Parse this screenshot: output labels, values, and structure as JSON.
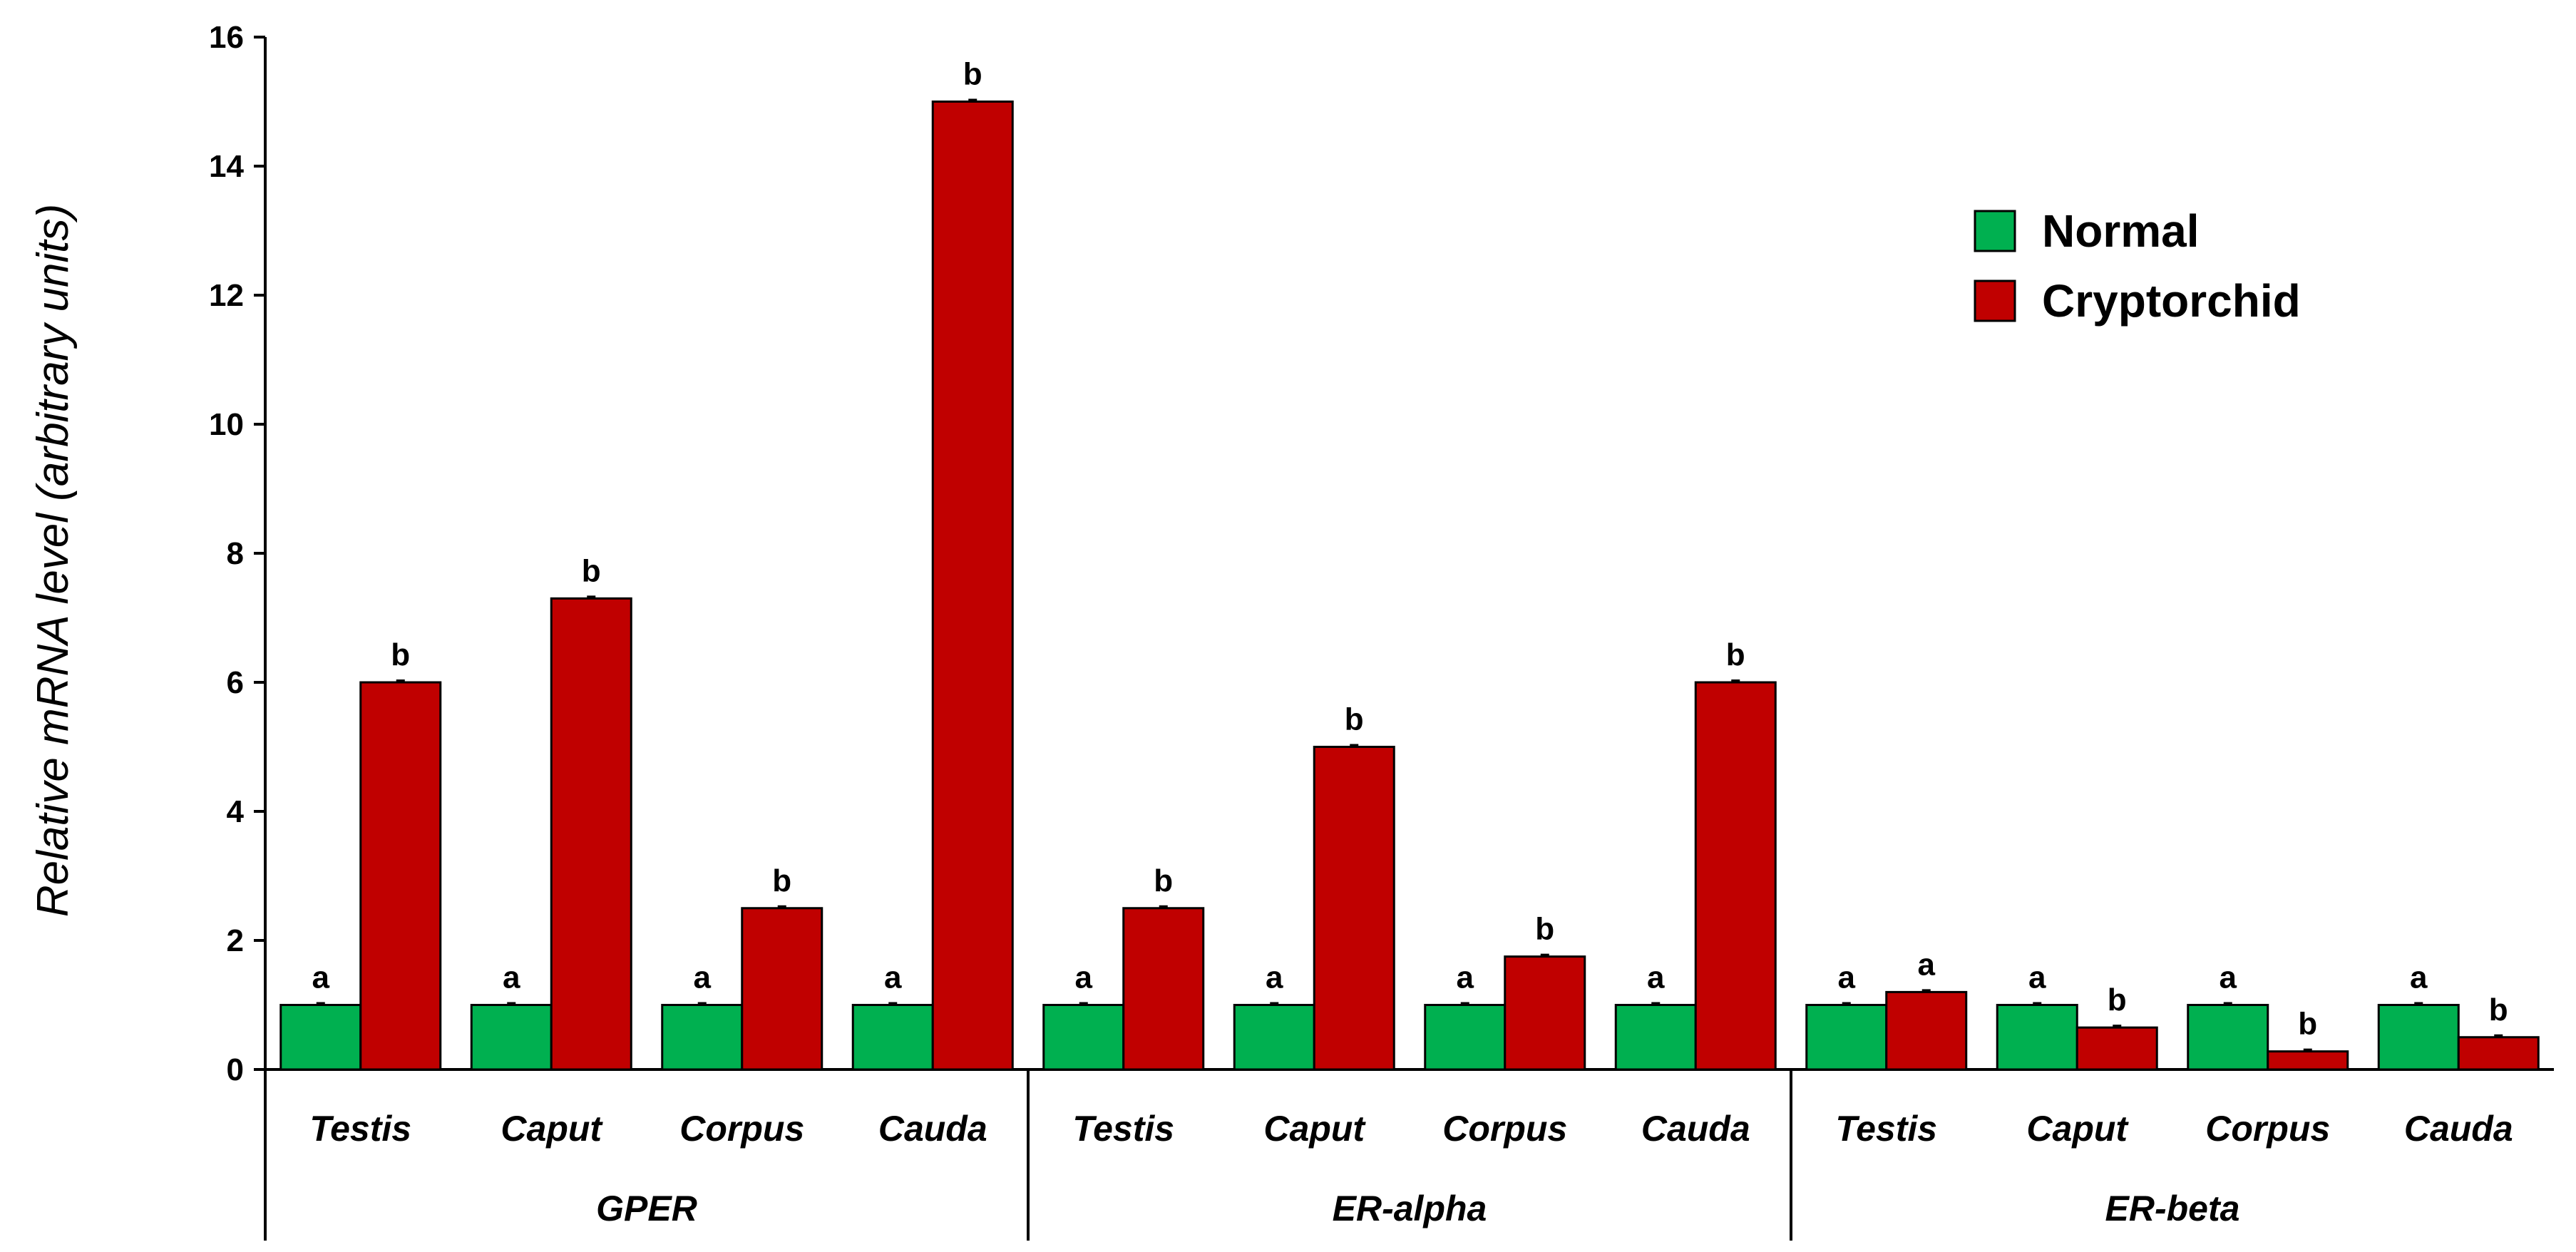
{
  "chart_data": {
    "type": "bar",
    "ylabel": "Relative mRNA level (arbitrary units)",
    "ylim": [
      0,
      16
    ],
    "yticks": [
      0,
      2,
      4,
      6,
      8,
      10,
      12,
      14,
      16
    ],
    "grid": false,
    "legend_position": "top-right",
    "groups": [
      {
        "name": "GPER",
        "categories": [
          "Testis",
          "Caput",
          "Corpus",
          "Cauda"
        ]
      },
      {
        "name": "ER-alpha",
        "categories": [
          "Testis",
          "Caput",
          "Corpus",
          "Cauda"
        ]
      },
      {
        "name": "ER-beta",
        "categories": [
          "Testis",
          "Caput",
          "Corpus",
          "Cauda"
        ]
      }
    ],
    "series": [
      {
        "name": "Normal",
        "color": "#00b050",
        "values": [
          1,
          1,
          1,
          1,
          1,
          1,
          1,
          1,
          1,
          1,
          1,
          1
        ],
        "significance": [
          "a",
          "a",
          "a",
          "a",
          "a",
          "a",
          "a",
          "a",
          "a",
          "a",
          "a",
          "a"
        ]
      },
      {
        "name": "Cryptorchid",
        "color": "#c00000",
        "values": [
          6,
          7.3,
          2.5,
          15,
          2.5,
          5,
          1.75,
          6,
          1.2,
          0.65,
          0.28,
          0.5
        ],
        "significance": [
          "b",
          "b",
          "b",
          "b",
          "b",
          "b",
          "b",
          "b",
          "a",
          "b",
          "b",
          "b"
        ]
      }
    ]
  }
}
